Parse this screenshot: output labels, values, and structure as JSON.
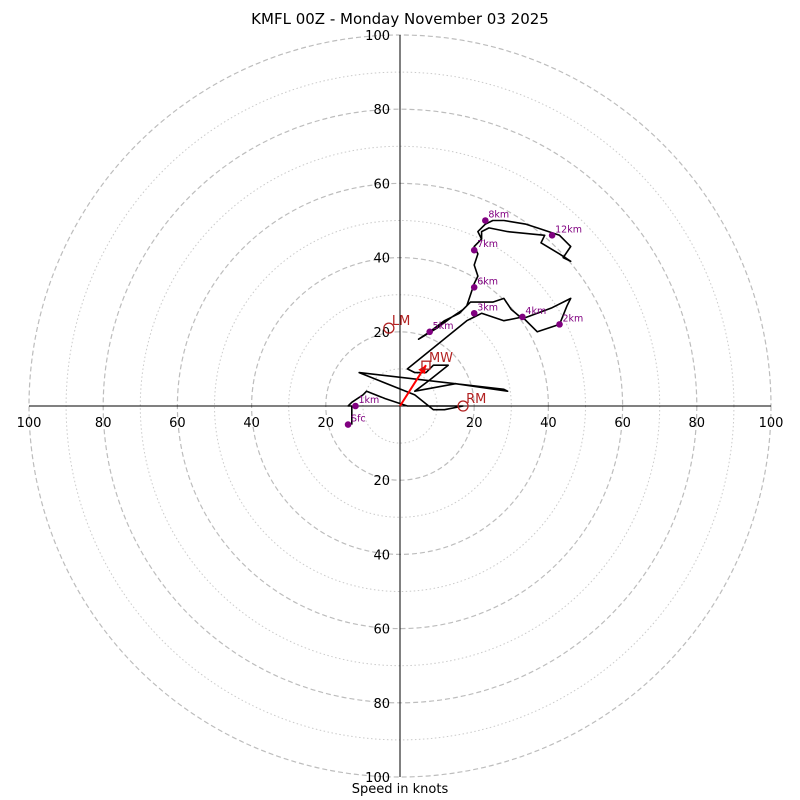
{
  "chart_data": {
    "type": "line",
    "title": "KMFL 00Z - Monday November 03 2025",
    "xlabel": "Speed in knots",
    "ring_step": 10,
    "max_ring": 100,
    "axis_ticks": [
      100,
      80,
      60,
      40,
      20
    ],
    "axis_tick_labels": [
      "100",
      "80",
      "60",
      "40",
      "20",
      "20",
      "40",
      "60",
      "80",
      "100"
    ],
    "series": [
      {
        "name": "hodograph",
        "color": "#000000",
        "points": [
          [
            -13,
            -5
          ],
          [
            -13,
            0
          ],
          [
            -14,
            0
          ],
          [
            -13,
            1
          ],
          [
            -10,
            3
          ],
          [
            -9,
            4
          ],
          [
            -4,
            2
          ],
          [
            2,
            0
          ],
          [
            5,
            0
          ],
          [
            17,
            0
          ],
          [
            12,
            -1
          ],
          [
            9,
            -1
          ],
          [
            4,
            3
          ],
          [
            -11,
            9
          ],
          [
            28,
            4.5
          ],
          [
            29,
            4
          ],
          [
            15,
            6
          ],
          [
            4,
            4
          ],
          [
            8,
            7
          ],
          [
            13,
            11
          ],
          [
            9,
            11
          ],
          [
            7,
            9
          ],
          [
            4,
            9
          ],
          [
            2,
            10
          ],
          [
            18,
            23
          ],
          [
            20,
            24
          ],
          [
            22,
            25
          ],
          [
            28,
            23
          ],
          [
            33,
            24
          ],
          [
            37,
            20
          ],
          [
            43,
            22
          ],
          [
            45,
            27
          ],
          [
            46,
            29
          ],
          [
            41,
            26.5
          ],
          [
            33,
            23.5
          ],
          [
            30,
            26
          ],
          [
            28,
            29
          ],
          [
            25,
            28
          ],
          [
            19,
            28
          ],
          [
            17,
            26
          ],
          [
            14,
            24
          ],
          [
            10,
            21
          ],
          [
            5,
            18
          ],
          [
            8,
            20
          ],
          [
            12,
            23
          ],
          [
            16,
            25
          ],
          [
            18,
            27
          ],
          [
            19,
            30
          ],
          [
            20,
            33
          ],
          [
            21,
            35
          ],
          [
            20,
            38
          ],
          [
            21,
            41
          ],
          [
            20,
            43
          ],
          [
            22,
            45
          ],
          [
            21,
            47
          ],
          [
            23,
            49
          ],
          [
            25,
            50
          ],
          [
            28,
            50
          ],
          [
            34,
            49
          ],
          [
            37,
            48
          ],
          [
            43,
            46
          ],
          [
            45,
            44
          ],
          [
            46,
            43
          ],
          [
            44,
            40
          ],
          [
            46,
            39
          ],
          [
            43,
            41
          ],
          [
            38,
            44
          ],
          [
            39,
            46
          ],
          [
            29,
            47
          ],
          [
            24,
            48
          ],
          [
            22,
            47
          ],
          [
            22,
            45
          ]
        ]
      }
    ],
    "height_markers": [
      {
        "label": "Sfc",
        "u": -14,
        "v": -5
      },
      {
        "label": "1km",
        "u": -12,
        "v": 0
      },
      {
        "label": "2km",
        "u": 43,
        "v": 22
      },
      {
        "label": "3km",
        "u": 20,
        "v": 25
      },
      {
        "label": "4km",
        "u": 33,
        "v": 24
      },
      {
        "label": "5km",
        "u": 8,
        "v": 20
      },
      {
        "label": "6km",
        "u": 20,
        "v": 32
      },
      {
        "label": "7km",
        "u": 20,
        "v": 42
      },
      {
        "label": "8km",
        "u": 23,
        "v": 50
      },
      {
        "label": "12km",
        "u": 41,
        "v": 46
      }
    ],
    "storm_motions": [
      {
        "label": "LM",
        "u": -3,
        "v": 21,
        "marker": "circle"
      },
      {
        "label": "MW",
        "u": 7,
        "v": 11,
        "marker": "square"
      },
      {
        "label": "RM",
        "u": 17,
        "v": 0,
        "marker": "circle"
      }
    ],
    "mean_wind_vector": {
      "u": 7,
      "v": 11
    },
    "colors": {
      "hodograph": "#000000",
      "marker": "#800080",
      "storm": "#b22222",
      "vector": "#ff0000",
      "ring": "#bdbdbd"
    }
  }
}
